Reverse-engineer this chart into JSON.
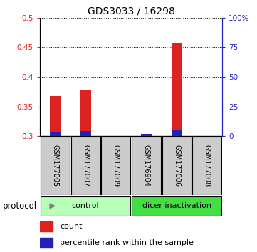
{
  "title": "GDS3033 / 16298",
  "samples": [
    "GSM177005",
    "GSM177007",
    "GSM177009",
    "GSM176904",
    "GSM177006",
    "GSM177008"
  ],
  "count_values": [
    0.367,
    0.378,
    0.3,
    0.3,
    0.458,
    0.3
  ],
  "percentile_values": [
    3.0,
    4.5,
    0.0,
    2.0,
    5.5,
    0.0
  ],
  "ylim_left": [
    0.3,
    0.5
  ],
  "ylim_right": [
    0,
    100
  ],
  "groups": [
    {
      "label": "control",
      "n_samples": 3,
      "color": "#b8ffb8"
    },
    {
      "label": "dicer inactivation",
      "n_samples": 3,
      "color": "#44dd44"
    }
  ],
  "red_color": "#dd2222",
  "blue_color": "#2222bb",
  "yticks_left": [
    0.3,
    0.35,
    0.4,
    0.45,
    0.5
  ],
  "yticks_right": [
    0,
    25,
    50,
    75,
    100
  ],
  "ytick_labels_left": [
    "0.3",
    "0.35",
    "0.4",
    "0.45",
    "0.5"
  ],
  "ytick_labels_right": [
    "0",
    "25",
    "50",
    "75",
    "100%"
  ],
  "sample_box_color": "#cccccc",
  "protocol_label": "protocol",
  "legend_count_label": "count",
  "legend_pct_label": "percentile rank within the sample"
}
